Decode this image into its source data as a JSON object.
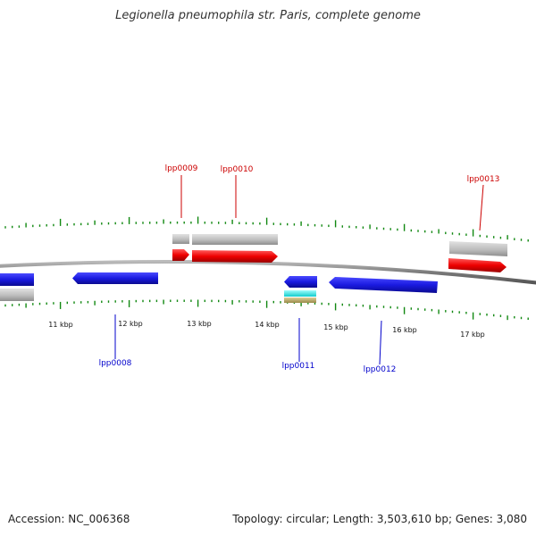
{
  "title": "Legionella pneumophila str. Paris, complete genome",
  "footer": {
    "accession": "Accession: NC_006368",
    "summary": "Topology: circular; Length: 3,503,610 bp; Genes: 3,080"
  },
  "colors": {
    "forward_gene": "#ee1111",
    "reverse_gene": "#1a1ae0",
    "feature_gray": "#bbbbbb",
    "trna": "#22eeee",
    "rrna": "#bbaa66",
    "tick": "#118811",
    "backbone": "#888888"
  },
  "scale_labels": [
    "11 kbp",
    "12 kbp",
    "13 kbp",
    "14 kbp",
    "15 kbp",
    "16 kbp",
    "17 kbp"
  ],
  "gene_labels": {
    "top": [
      "lpp0009",
      "lpp0010",
      "lpp0013"
    ],
    "bottom": [
      "lpp0008",
      "lpp0011",
      "lpp0012"
    ]
  }
}
